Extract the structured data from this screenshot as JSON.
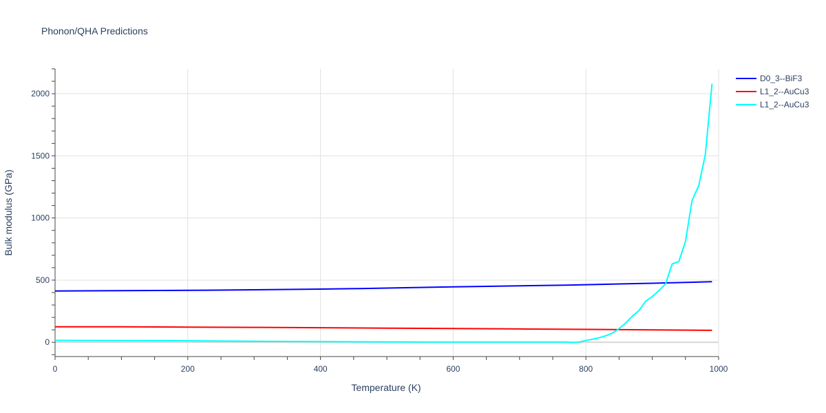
{
  "chart_data": {
    "type": "line",
    "title": "Phonon/QHA Predictions",
    "xlabel": "Temperature (K)",
    "ylabel": "Bulk modulus (GPa)",
    "xlim": [
      0,
      1000
    ],
    "ylim": [
      -115,
      2200
    ],
    "x_ticks": [
      0,
      200,
      400,
      600,
      800,
      1000
    ],
    "y_ticks": [
      0,
      500,
      1000,
      1500,
      2000
    ],
    "x_tick_labels": [
      "0",
      "200",
      "400",
      "600",
      "800",
      "1000"
    ],
    "y_tick_labels": [
      "0",
      "500",
      "1000",
      "1500",
      "2000"
    ],
    "grid": true,
    "legend_position": "top-right",
    "series": [
      {
        "name": "D0_3--BiF3",
        "color": "#0000ff",
        "x": [
          0,
          100,
          230,
          300,
          400,
          460,
          500,
          600,
          700,
          770,
          800,
          900,
          990
        ],
        "y": [
          413,
          415,
          419,
          422,
          428,
          432,
          436,
          446,
          454,
          460,
          463,
          475,
          487
        ]
      },
      {
        "name": "L1_2--AuCu3",
        "color": "#ff0000",
        "x": [
          0,
          100,
          200,
          300,
          400,
          500,
          600,
          700,
          800,
          900,
          990
        ],
        "y": [
          125,
          124,
          122,
          120,
          117,
          114,
          111,
          107,
          104,
          100,
          96
        ]
      },
      {
        "name": "L1_2--AuCu3",
        "color": "#00ffff",
        "x": [
          0,
          100,
          200,
          300,
          400,
          500,
          600,
          700,
          770,
          780,
          790,
          800,
          810,
          820,
          830,
          840,
          850,
          860,
          870,
          880,
          890,
          900,
          910,
          920,
          930,
          940,
          950,
          960,
          970,
          980,
          990
        ],
        "y": [
          15,
          14,
          12,
          8,
          5,
          3,
          2,
          2,
          2,
          -2,
          2,
          14,
          24,
          36,
          52,
          74,
          110,
          155,
          210,
          255,
          330,
          368,
          415,
          470,
          630,
          650,
          810,
          1140,
          1260,
          1510,
          2080
        ]
      }
    ]
  }
}
